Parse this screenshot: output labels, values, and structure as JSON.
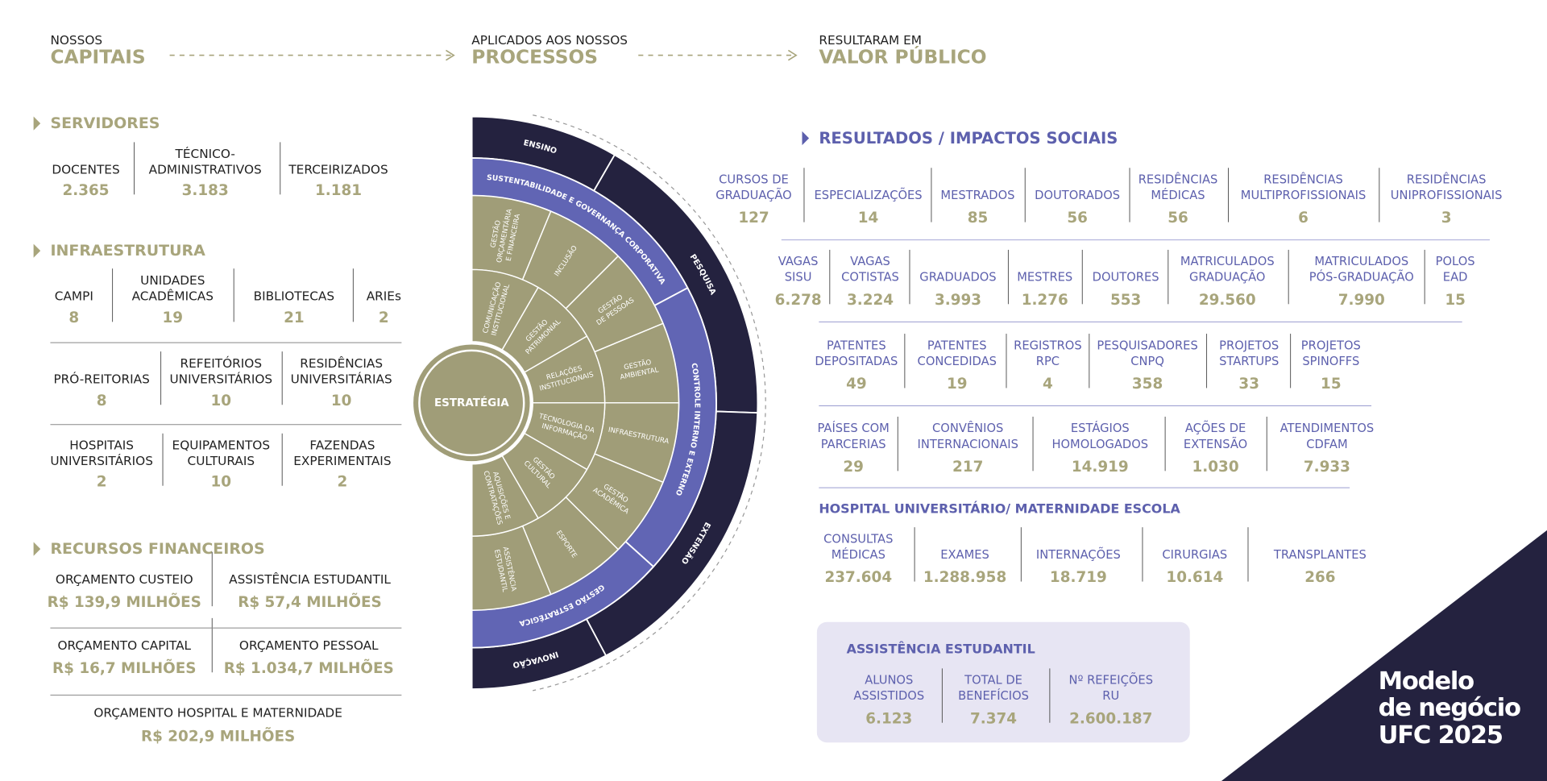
{
  "header": {
    "capitais_pre": "NOSSOS",
    "capitais": "CAPITAIS",
    "processos_pre": "APLICADOS AOS NOSSOS",
    "processos": "PROCESSOS",
    "valor_pre": "RESULTARAM EM",
    "valor": "VALOR PÚBLICO"
  },
  "left": [
    {
      "title": "SERVIDORES",
      "rows": [
        [
          {
            "label": [
              "DOCENTES"
            ],
            "value": "2.365"
          },
          {
            "label": [
              "TÉCNICO-",
              "ADMINISTRATIVOS"
            ],
            "value": "3.183"
          },
          {
            "label": [
              "TERCEIRIZADOS"
            ],
            "value": "1.181"
          }
        ]
      ]
    },
    {
      "title": "INFRAESTRUTURA",
      "rows": [
        [
          {
            "label": [
              "CAMPI"
            ],
            "value": "8"
          },
          {
            "label": [
              "UNIDADES",
              "ACADÊMICAS"
            ],
            "value": "19"
          },
          {
            "label": [
              "BIBLIOTECAS"
            ],
            "value": "21"
          },
          {
            "label": [
              "ARIEs"
            ],
            "value": "2"
          }
        ],
        [
          {
            "label": [
              "PRÓ-REITORIAS"
            ],
            "value": "8"
          },
          {
            "label": [
              "REFEITÓRIOS",
              "UNIVERSITÁRIOS"
            ],
            "value": "10"
          },
          {
            "label": [
              "RESIDÊNCIAS",
              "UNIVERSITÁRIAS"
            ],
            "value": "10"
          }
        ],
        [
          {
            "label": [
              "HOSPITAIS",
              "UNIVERSITÁRIOS"
            ],
            "value": "2"
          },
          {
            "label": [
              "EQUIPAMENTOS",
              "CULTURAIS"
            ],
            "value": "10"
          },
          {
            "label": [
              "FAZENDAS",
              "EXPERIMENTAIS"
            ],
            "value": "2"
          }
        ]
      ]
    },
    {
      "title": "RECURSOS FINANCEIROS",
      "rows": [
        [
          {
            "label": [
              "ORÇAMENTO CUSTEIO"
            ],
            "value": "R$ 139,9 MILHÕES"
          },
          {
            "label": [
              "ASSISTÊNCIA ESTUDANTIL"
            ],
            "value": "R$ 57,4 MILHÕES"
          }
        ],
        [
          {
            "label": [
              "ORÇAMENTO CAPITAL"
            ],
            "value": "R$ 16,7 MILHÕES"
          },
          {
            "label": [
              "ORÇAMENTO PESSOAL"
            ],
            "value": "R$ 1.034,7 MILHÕES"
          }
        ],
        [
          {
            "label": [
              "ORÇAMENTO HOSPITAL E MATERNIDADE"
            ],
            "value": "R$ 202,9 MILHÕES"
          }
        ]
      ]
    }
  ],
  "wheel": {
    "center": "ESTRATÉGIA",
    "outer": [
      "ENSINO",
      "PESQUISA",
      "EXTENSÃO",
      "INOVAÇÃO"
    ],
    "ring": [
      "SUSTENTABILIDADE E GOVERNANÇA CORPORATIVA",
      "CONTROLE INTERNO E EXTERNO",
      "GESTÃO ESTRATÉGICA"
    ],
    "segments_outer": [
      [
        "GESTÃO",
        "ORÇAMENTÁRIA",
        "E FINANCEIRA"
      ],
      [
        "INCLUSÃO"
      ],
      [
        "GESTÃO",
        "DE PESSOAS"
      ],
      [
        "GESTÃO",
        "AMBIENTAL"
      ],
      [
        "INFRAESTRUTURA"
      ],
      [
        "GESTÃO",
        "ACADÊMICA"
      ],
      [
        "ESPORTE"
      ],
      [
        "ASSISTÊNCIA",
        "ESTUDANTIL"
      ]
    ],
    "segments_inner": [
      [
        "COMUNICAÇÃO",
        "INSTITUCIONAL"
      ],
      [
        "GESTÃO",
        "PATRIMONIAL"
      ],
      [
        "RELAÇÕES",
        "INSTITUCIONAIS"
      ],
      [
        "TECNOLOGIA DA",
        "INFORMAÇÃO"
      ],
      [
        "GESTÃO",
        "CULTURAL"
      ],
      [
        "AQUISIÇÕES E",
        "CONTRATAÇÕES"
      ]
    ]
  },
  "right": {
    "title": "RESULTADOS / IMPACTOS SOCIAIS",
    "rows": [
      [
        {
          "label": [
            "CURSOS DE",
            "GRADUAÇÃO"
          ],
          "value": "127"
        },
        {
          "label": [
            "ESPECIALIZAÇÕES"
          ],
          "value": "14"
        },
        {
          "label": [
            "MESTRADOS"
          ],
          "value": "85"
        },
        {
          "label": [
            "DOUTORADOS"
          ],
          "value": "56"
        },
        {
          "label": [
            "RESIDÊNCIAS",
            "MÉDICAS"
          ],
          "value": "56"
        },
        {
          "label": [
            "RESIDÊNCIAS",
            "MULTIPROFISSIONAIS"
          ],
          "value": "6"
        },
        {
          "label": [
            "RESIDÊNCIAS",
            "UNIPROFISSIONAIS"
          ],
          "value": "3"
        }
      ],
      [
        {
          "label": [
            "VAGAS",
            "SISU"
          ],
          "value": "6.278"
        },
        {
          "label": [
            "VAGAS",
            "COTISTAS"
          ],
          "value": "3.224"
        },
        {
          "label": [
            "GRADUADOS"
          ],
          "value": "3.993"
        },
        {
          "label": [
            "MESTRES"
          ],
          "value": "1.276"
        },
        {
          "label": [
            "DOUTORES"
          ],
          "value": "553"
        },
        {
          "label": [
            "MATRICULADOS",
            "GRADUAÇÃO"
          ],
          "value": "29.560"
        },
        {
          "label": [
            "MATRICULADOS",
            "PÓS-GRADUAÇÃO"
          ],
          "value": "7.990"
        },
        {
          "label": [
            "POLOS",
            "EAD"
          ],
          "value": "15"
        }
      ],
      [
        {
          "label": [
            "PATENTES",
            "DEPOSITADAS"
          ],
          "value": "49"
        },
        {
          "label": [
            "PATENTES",
            "CONCEDIDAS"
          ],
          "value": "19"
        },
        {
          "label": [
            "REGISTROS",
            "RPC"
          ],
          "value": "4"
        },
        {
          "label": [
            "PESQUISADORES",
            "CNPQ"
          ],
          "value": "358"
        },
        {
          "label": [
            "PROJETOS",
            "STARTUPS"
          ],
          "value": "33"
        },
        {
          "label": [
            "PROJETOS",
            "SPINOFFS"
          ],
          "value": "15"
        }
      ],
      [
        {
          "label": [
            "PAÍSES COM",
            "PARCERIAS"
          ],
          "value": "29"
        },
        {
          "label": [
            "CONVÊNIOS",
            "INTERNACIONAIS"
          ],
          "value": "217"
        },
        {
          "label": [
            "ESTÁGIOS",
            "HOMOLOGADOS"
          ],
          "value": "14.919"
        },
        {
          "label": [
            "AÇÕES DE",
            "EXTENSÃO"
          ],
          "value": "1.030"
        },
        {
          "label": [
            "ATENDIMENTOS",
            "CDFAM"
          ],
          "value": "7.933"
        }
      ]
    ],
    "hospital": {
      "title": "HOSPITAL UNIVERSITÁRIO/ MATERNIDADE ESCOLA",
      "items": [
        {
          "label": [
            "CONSULTAS",
            "MÉDICAS"
          ],
          "value": "237.604"
        },
        {
          "label": [
            "EXAMES"
          ],
          "value": "1.288.958"
        },
        {
          "label": [
            "INTERNAÇÕES"
          ],
          "value": "18.719"
        },
        {
          "label": [
            "CIRURGIAS"
          ],
          "value": "10.614"
        },
        {
          "label": [
            "TRANSPLANTES"
          ],
          "value": "266"
        }
      ]
    },
    "assistencia": {
      "title": "ASSISTÊNCIA ESTUDANTIL",
      "items": [
        {
          "label": [
            "ALUNOS",
            "ASSISTIDOS"
          ],
          "value": "6.123"
        },
        {
          "label": [
            "TOTAL DE",
            "BENEFÍCIOS"
          ],
          "value": "7.374"
        },
        {
          "label": [
            "Nº REFEIÇÕES",
            "RU"
          ],
          "value": "2.600.187"
        }
      ]
    }
  },
  "brand": [
    "Modelo",
    "de negócio",
    "UFC 2025"
  ]
}
